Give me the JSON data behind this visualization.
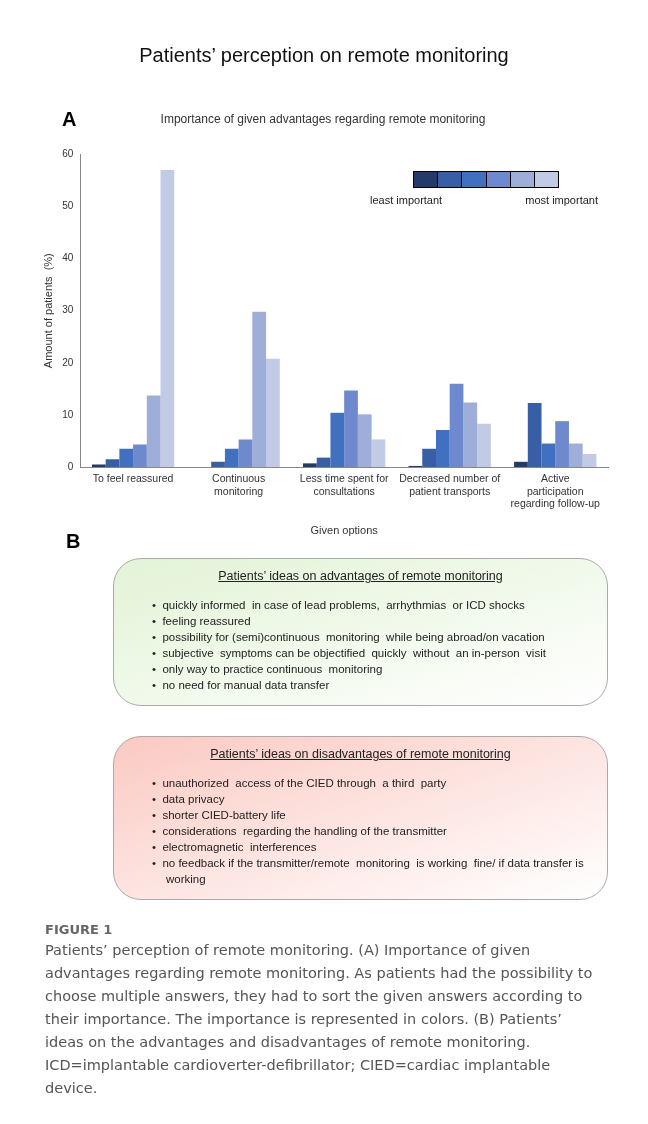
{
  "chart_data": [
    {
      "type": "bar",
      "title": "Patients’ perception on remote monitoring",
      "subtitle": "Importance of given advantages regarding remote monitoring",
      "xlabel": "Given options",
      "ylabel": "Amount of patients  (%)",
      "categories": [
        "To feel reassured",
        "Continuous monitoring",
        "Less time spent for consultations",
        "Decreased number of patient transports",
        "Active participation regarding follow-up"
      ],
      "series": [
        {
          "color": "#233a6b",
          "values": [
            0.5,
            0,
            0.7,
            0.2,
            1.0
          ]
        },
        {
          "color": "#385fa6",
          "values": [
            1.5,
            1.0,
            1.8,
            3.5,
            12.3
          ]
        },
        {
          "color": "#4170c0",
          "values": [
            3.5,
            3.5,
            10.4,
            7.1,
            4.5
          ]
        },
        {
          "color": "#6e89ce",
          "values": [
            4.3,
            5.3,
            14.7,
            16,
            8.8
          ]
        },
        {
          "color": "#9eaed9",
          "values": [
            13.7,
            29.8,
            10.1,
            12.4,
            4.5
          ]
        },
        {
          "color": "#c1cbe6",
          "values": [
            57,
            20.8,
            5.3,
            8.3,
            2.5
          ]
        }
      ],
      "ylim": [
        0,
        60
      ],
      "yticks": [
        0,
        10,
        20,
        30,
        40,
        50,
        60
      ],
      "annotations": [
        "A",
        "least important",
        "most important",
        "B",
        "FIGURE 1",
        "Patients’ perception of remote monitoring. (A) Importance of given advantages regarding remote monitoring. As patients had the possibility to choose multiple answers, they had to sort the given answers according to their importance. The importance is represented in colors. (B) Patients’ ideas on the advantages and disadvantages of remote monitoring. ICD=implantable cardioverter-defibrillator; CIED=cardiac implantable device."
      ]
    },
    {
      "type": "other",
      "title": "Patients’ ideas on advantages of remote monitoring",
      "color": "#e2f3d6",
      "annotations": [
        "•  quickly informed  in case of lead problems,  arrhythmias  or ICD shocks",
        "•  feeling reassured",
        "•  possibility for (semi)continuous  monitoring  while being abroad/on vacation",
        "•  subjective  symptoms can be objectified  quickly  without  an in-person  visit",
        "•  only way to practice continuous  monitoring",
        "•  no need for manual data transfer"
      ]
    },
    {
      "type": "other",
      "title": "Patients’ ideas on disadvantages of remote monitoring",
      "color": "#fbc9c2",
      "annotations": [
        "•  unauthorized  access of the CIED through  a third  party",
        "•  data privacy",
        "•  shorter CIED-battery life",
        "•  considerations  regarding the handling of the transmitter",
        "•  electromagnetic  interferences",
        "•  no feedback if the transmitter/remote  monitoring  is working  fine/ if data transfer is working"
      ]
    }
  ]
}
